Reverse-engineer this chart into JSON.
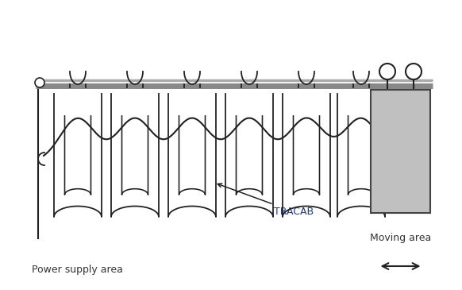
{
  "bg_color": "#ffffff",
  "line_color": "#222222",
  "rail_color": "#888888",
  "box_color": "#c0c0c0",
  "box_edge_color": "#444444",
  "text_color": "#333333",
  "tracab_color": "#1a3a8a",
  "label_tracab": "TRACAB",
  "label_moving": "Moving area",
  "label_power": "Power supply area",
  "figsize": [
    5.82,
    3.65
  ],
  "dpi": 100
}
